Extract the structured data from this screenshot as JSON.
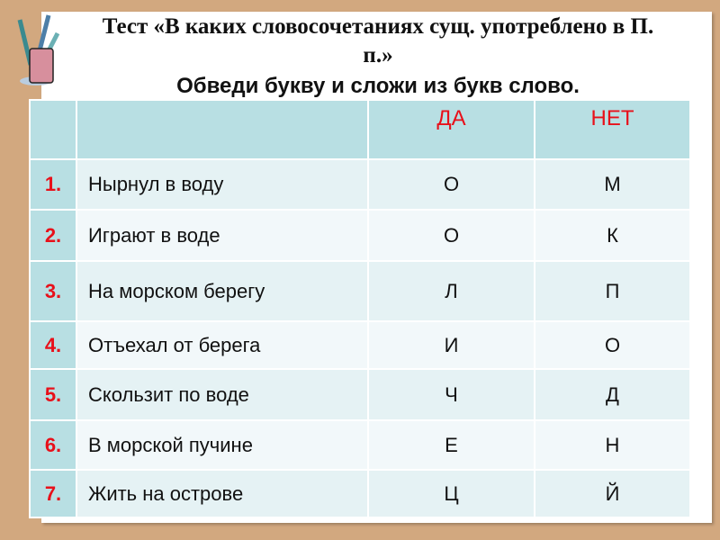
{
  "title": "Тест «В каких словосочетаниях сущ. употреблено в П. п.»",
  "subtitle": "Обведи букву и сложи из букв слово.",
  "table": {
    "headers": [
      "",
      "",
      "ДА",
      "НЕТ"
    ],
    "rows": [
      {
        "num": "1.",
        "phrase": "Нырнул в воду",
        "yes": "О",
        "no": "М"
      },
      {
        "num": "2.",
        "phrase": "Играют в воде",
        "yes": "О",
        "no": "К"
      },
      {
        "num": "3.",
        "phrase": "На морском берегу",
        "yes": "Л",
        "no": "П"
      },
      {
        "num": "4.",
        "phrase": "Отъехал от берега",
        "yes": "И",
        "no": "О"
      },
      {
        "num": "5.",
        "phrase": "Скользит по воде",
        "yes": "Ч",
        "no": "Д"
      },
      {
        "num": "6.",
        "phrase": "В морской пучине",
        "yes": "Е",
        "no": "Н"
      },
      {
        "num": "7.",
        "phrase": "Жить на острове",
        "yes": "Ц",
        "no": "Й"
      }
    ]
  },
  "colors": {
    "background": "#d2a87f",
    "header": "#b8dfe3",
    "accent_red": "#e8101a"
  },
  "icon": "pencil-cup-icon"
}
